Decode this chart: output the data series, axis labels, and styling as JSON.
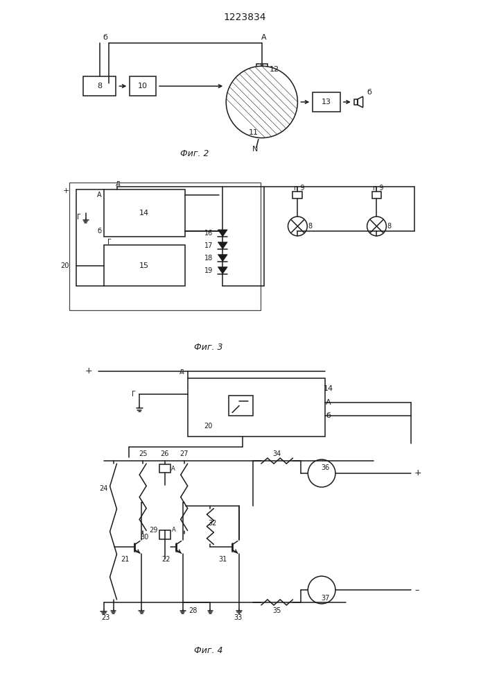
{
  "title": "1223834",
  "fig2_caption": "Фиг. 2",
  "fig3_caption": "Фиг. 3",
  "fig4_caption": "Фиг. 4",
  "bg_color": "#ffffff",
  "line_color": "#1a1a1a",
  "line_width": 1.1,
  "font_size": 9,
  "label_font_size": 8
}
